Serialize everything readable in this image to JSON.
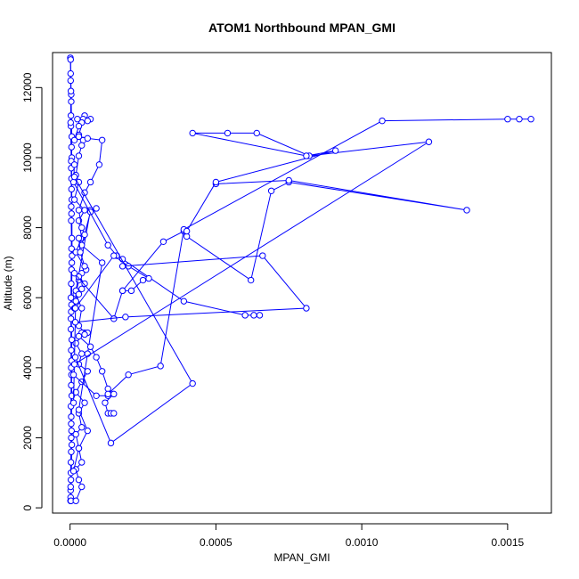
{
  "chart_data": {
    "type": "line",
    "title": "ATOM1 Northbound MPAN_GMI",
    "xlabel": "MPAN_GMI",
    "ylabel": "Altitude (m)",
    "xlim": [
      -6e-05,
      0.00165
    ],
    "ylim": [
      -150,
      13000
    ],
    "x_ticks": [
      0,
      0.0005,
      0.001,
      0.0015
    ],
    "x_tick_labels": [
      "0.0000",
      "0.0005",
      "0.0010",
      "0.0015"
    ],
    "y_ticks": [
      0,
      2000,
      4000,
      6000,
      8000,
      10000,
      12000
    ],
    "y_tick_labels": [
      "0",
      "2000",
      "4000",
      "6000",
      "8000",
      "10000",
      "12000"
    ],
    "grid": false,
    "marker": "open-circle",
    "color": "#0000ff",
    "series": [
      {
        "points": [
          [
            2e-06,
            200
          ],
          [
            3e-06,
            1000
          ],
          [
            5e-06,
            2200
          ],
          [
            4e-06,
            3500
          ],
          [
            6e-06,
            4800
          ],
          [
            3e-06,
            6000
          ],
          [
            5e-06,
            7400
          ],
          [
            4e-06,
            8600
          ],
          [
            6e-06,
            10000
          ],
          [
            3e-06,
            11200
          ],
          [
            2e-06,
            12400
          ],
          [
            1e-06,
            12850
          ],
          [
            2e-06,
            12800
          ],
          [
            4e-06,
            11600
          ],
          [
            6e-06,
            10600
          ],
          [
            5e-06,
            9400
          ],
          [
            4e-06,
            8200
          ],
          [
            6e-06,
            7000
          ],
          [
            4e-06,
            5600
          ],
          [
            5e-06,
            4200
          ],
          [
            3e-06,
            2900
          ],
          [
            4e-06,
            1600
          ],
          [
            2e-06,
            500
          ],
          [
            2e-06,
            200
          ],
          [
            3e-06,
            800
          ],
          [
            4e-06,
            2000
          ],
          [
            6e-06,
            3200
          ],
          [
            4e-06,
            4500
          ],
          [
            5e-06,
            5800
          ],
          [
            7e-06,
            7200
          ],
          [
            6e-06,
            8800
          ],
          [
            5e-06,
            10300
          ],
          [
            4e-06,
            11800
          ],
          [
            2e-06,
            12200
          ],
          [
            3e-06,
            10900
          ],
          [
            5e-06,
            9100
          ],
          [
            6e-06,
            7700
          ],
          [
            4e-06,
            6400
          ],
          [
            3e-06,
            5100
          ],
          [
            5e-06,
            3800
          ],
          [
            4e-06,
            2400
          ],
          [
            3e-06,
            1300
          ],
          [
            2e-06,
            300
          ],
          [
            3e-06,
            200
          ],
          [
            6e-06,
            1800
          ],
          [
            4e-06,
            4000
          ],
          [
            5e-06,
            6800
          ],
          [
            4e-06,
            9700
          ],
          [
            3e-06,
            11900
          ],
          [
            2e-06,
            11000
          ],
          [
            4e-06,
            9900
          ],
          [
            5e-06,
            8400
          ],
          [
            3e-06,
            5400
          ],
          [
            4e-06,
            2600
          ],
          [
            2e-06,
            600
          ]
        ]
      },
      {
        "points": [
          [
            5e-05,
            11200
          ],
          [
            3e-05,
            10650
          ],
          [
            4.5e-05,
            10500
          ],
          [
            4e-05,
            10350
          ],
          [
            3e-05,
            10050
          ],
          [
            2e-05,
            9500
          ],
          [
            3e-05,
            9300
          ],
          [
            1.5e-05,
            8800
          ],
          [
            5e-05,
            8500
          ],
          [
            3e-05,
            8200
          ],
          [
            4e-05,
            7700
          ],
          [
            2e-05,
            7300
          ],
          [
            5.5e-05,
            6800
          ],
          [
            3e-05,
            6500
          ],
          [
            2e-05,
            6100
          ],
          [
            4e-05,
            5700
          ],
          [
            3e-05,
            5200
          ],
          [
            5e-05,
            5000
          ],
          [
            2e-05,
            4700
          ],
          [
            4e-05,
            4400
          ],
          [
            3e-05,
            4100
          ],
          [
            6e-05,
            3900
          ],
          [
            4e-05,
            3600
          ],
          [
            2e-05,
            3300
          ],
          [
            5e-05,
            3000
          ],
          [
            3e-05,
            2700
          ],
          [
            4e-05,
            2300
          ],
          [
            2e-05,
            2100
          ],
          [
            3e-05,
            1700
          ],
          [
            4e-05,
            1300
          ],
          [
            2e-05,
            1100
          ],
          [
            3e-05,
            800
          ],
          [
            4e-05,
            600
          ],
          [
            2e-05,
            200
          ]
        ]
      },
      {
        "points": [
          [
            1.2e-05,
            3000
          ],
          [
            2e-05,
            6200
          ],
          [
            7e-05,
            8500
          ],
          [
            9e-05,
            8550
          ],
          [
            7e-05,
            8450
          ],
          [
            4e-05,
            7500
          ],
          [
            0.00011,
            7000
          ],
          [
            6e-05,
            4400
          ],
          [
            3e-05,
            2800
          ],
          [
            6e-05,
            2200
          ],
          [
            3e-05,
            1700
          ],
          [
            1.2e-05,
            1050
          ]
        ]
      },
      {
        "points": [
          [
            2.5e-05,
            11100
          ],
          [
            4.5e-05,
            11100
          ],
          [
            7e-05,
            11100
          ],
          [
            6e-05,
            11050
          ],
          [
            4e-05,
            11000
          ],
          [
            3e-05,
            10900
          ],
          [
            1.5e-05,
            10500
          ]
        ]
      },
      {
        "points": [
          [
            3e-05,
            10600
          ],
          [
            6e-05,
            10550
          ],
          [
            0.00011,
            10500
          ],
          [
            0.0001,
            9800
          ],
          [
            7e-05,
            9300
          ],
          [
            5e-05,
            9000
          ],
          [
            3e-05,
            8500
          ],
          [
            4e-05,
            8000
          ],
          [
            5e-05,
            7800
          ],
          [
            3e-05,
            7700
          ],
          [
            3.5e-05,
            7300
          ],
          [
            5e-05,
            6900
          ],
          [
            4e-05,
            6700
          ],
          [
            3e-05,
            6600
          ],
          [
            5e-05,
            6400
          ],
          [
            4e-05,
            6250
          ],
          [
            3e-05,
            6100
          ],
          [
            2e-05,
            5900
          ],
          [
            1.5e-05,
            5700
          ]
        ]
      },
      {
        "points": [
          [
            4e-05,
            5000
          ],
          [
            6e-05,
            5000
          ],
          [
            5e-05,
            4950
          ],
          [
            3e-05,
            4900
          ],
          [
            7e-05,
            4600
          ],
          [
            9e-05,
            4300
          ],
          [
            0.00011,
            3900
          ],
          [
            0.00013,
            3400
          ],
          [
            0.00015,
            3250
          ],
          [
            0.00012,
            3000
          ],
          [
            0.00013,
            2700
          ],
          [
            0.00014,
            2700
          ],
          [
            0.00015,
            2700
          ]
        ]
      },
      {
        "points": [
          [
            1.5e-05,
            9800
          ],
          [
            1.2e-05,
            9300
          ],
          [
            0.00013,
            7500
          ],
          [
            0.00016,
            7200
          ],
          [
            0.00018,
            7100
          ],
          [
            0.00039,
            5900
          ],
          [
            0.0006,
            5500
          ],
          [
            0.00063,
            5500
          ],
          [
            0.00065,
            5500
          ]
        ]
      },
      {
        "points": [
          [
            1.8e-05,
            5700
          ],
          [
            0.00015,
            7200
          ],
          [
            0.0002,
            6900
          ],
          [
            0.00027,
            6550
          ],
          [
            0.00025,
            6500
          ],
          [
            0.00021,
            6200
          ],
          [
            0.00018,
            6200
          ]
        ]
      },
      {
        "points": [
          [
            1.5e-05,
            6700
          ],
          [
            0.00015,
            5400
          ],
          [
            0.00015,
            5400
          ],
          [
            0.00018,
            6200
          ],
          [
            0.00032,
            7600
          ],
          [
            0.00039,
            7900
          ],
          [
            0.0004,
            7750
          ],
          [
            0.00062,
            6500
          ],
          [
            0.00069,
            9050
          ],
          [
            0.00075,
            9300
          ],
          [
            0.00136,
            8500
          ],
          [
            0.00075,
            9350
          ],
          [
            0.0005,
            9250
          ]
        ]
      },
      {
        "points": [
          [
            1.8e-05,
            5300
          ],
          [
            0.00019,
            5450
          ],
          [
            0.00081,
            5700
          ],
          [
            0.00066,
            7200
          ],
          [
            0.00018,
            6900
          ]
        ]
      },
      {
        "points": [
          [
            1.2e-05,
            3800
          ],
          [
            9e-05,
            3200
          ],
          [
            0.00013,
            3200
          ],
          [
            0.00013,
            3250
          ],
          [
            0.0002,
            3800
          ],
          [
            0.00031,
            4050
          ],
          [
            0.00039,
            7950
          ],
          [
            0.00107,
            11050
          ],
          [
            0.0015,
            11100
          ],
          [
            0.00154,
            11100
          ],
          [
            0.00158,
            11100
          ]
        ]
      },
      {
        "points": [
          [
            1.8e-05,
            4300
          ],
          [
            0.00014,
            1850
          ],
          [
            0.00042,
            3550
          ],
          [
            1.5e-05,
            9450
          ]
        ]
      },
      {
        "points": [
          [
            1.5e-05,
            4100
          ],
          [
            0.00123,
            10450
          ],
          [
            0.00082,
            10050
          ],
          [
            0.00064,
            10700
          ],
          [
            0.00054,
            10700
          ],
          [
            0.00042,
            10700
          ],
          [
            0.00081,
            10050
          ],
          [
            0.00091,
            10200
          ],
          [
            0.0005,
            9300
          ],
          [
            0.0004,
            7900
          ]
        ]
      }
    ]
  }
}
